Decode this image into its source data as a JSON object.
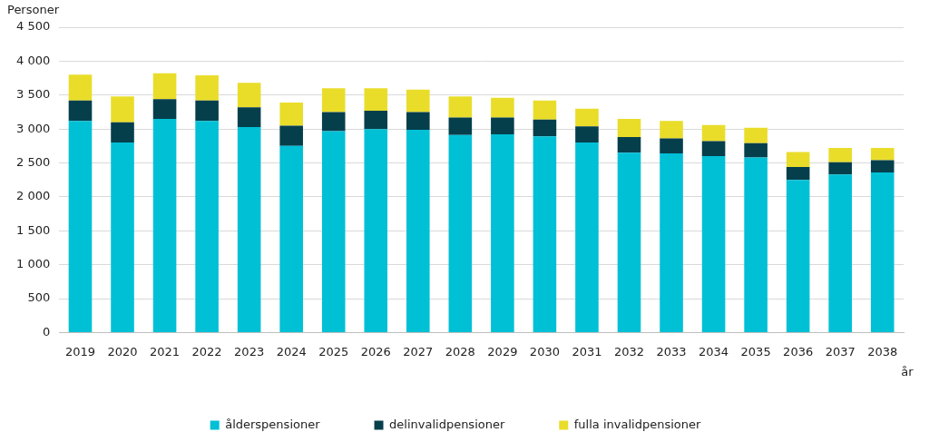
{
  "chart_data": {
    "type": "bar",
    "stacked": true,
    "y_label": "Personer",
    "x_label": "år",
    "categories": [
      "2019",
      "2020",
      "2021",
      "2022",
      "2023",
      "2024",
      "2025",
      "2026",
      "2027",
      "2028",
      "2029",
      "2030",
      "2031",
      "2032",
      "2033",
      "2034",
      "2035",
      "2036",
      "2037",
      "2038"
    ],
    "series": [
      {
        "name": "ålderspensioner",
        "color": "#00c0d6",
        "values": [
          3120,
          2800,
          3150,
          3120,
          3030,
          2750,
          2970,
          3000,
          2990,
          2910,
          2920,
          2890,
          2800,
          2650,
          2640,
          2600,
          2580,
          2250,
          2330,
          2360
        ]
      },
      {
        "name": "delinvalidpensioner",
        "color": "#063f4c",
        "values": [
          300,
          300,
          290,
          300,
          290,
          300,
          280,
          270,
          260,
          260,
          250,
          250,
          240,
          230,
          220,
          220,
          210,
          190,
          180,
          180
        ]
      },
      {
        "name": "fulla invalidpensioner",
        "color": "#e9dd2a",
        "values": [
          380,
          380,
          380,
          370,
          360,
          340,
          350,
          330,
          330,
          310,
          290,
          280,
          260,
          270,
          260,
          240,
          230,
          220,
          210,
          180
        ]
      }
    ],
    "ylim": [
      0,
      4500
    ],
    "yticks": [
      0,
      500,
      {
        "value": 1000,
        "label": "1 000"
      },
      {
        "value": 1500,
        "label": "1 500"
      },
      {
        "value": 2000,
        "label": "2 000"
      },
      {
        "value": 2500,
        "label": "2 500"
      },
      {
        "value": 3000,
        "label": "3 000"
      },
      {
        "value": 3500,
        "label": "3 500"
      },
      {
        "value": 4000,
        "label": "4 000"
      },
      {
        "value": 4500,
        "label": "4 500"
      }
    ],
    "grid": true,
    "legend": "bottom"
  }
}
